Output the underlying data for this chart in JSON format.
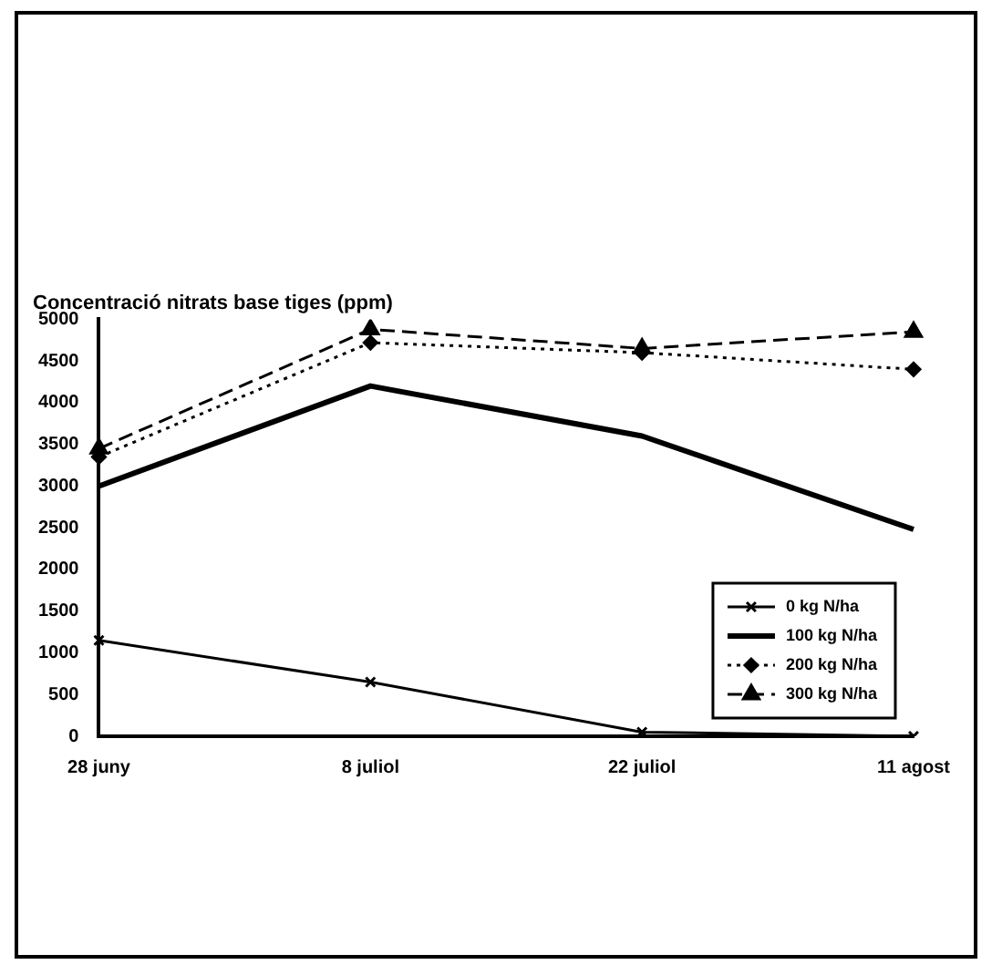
{
  "chart_data": {
    "type": "line",
    "title": "Concentració nitrats base tiges (ppm)",
    "categories": [
      "28 juny",
      "8 juliol",
      "22 juliol",
      "11 agost"
    ],
    "ylim": [
      0,
      5000
    ],
    "yticks": [
      0,
      500,
      1000,
      1500,
      2000,
      2500,
      3000,
      3500,
      4000,
      4500,
      5000
    ],
    "grid": false,
    "legend": "bottom right",
    "series": [
      {
        "name": "0 kg N/ha",
        "color": "#000000",
        "values": [
          1150,
          650,
          50,
          0
        ],
        "line_style": "solid",
        "marker": "cross"
      },
      {
        "name": "100 kg N/ha",
        "color": "#000000",
        "values": [
          3000,
          4200,
          3600,
          2480
        ],
        "line_style": "solid",
        "marker": "none"
      },
      {
        "name": "200 kg N/ha",
        "color": "#000000",
        "values": [
          3350,
          4720,
          4600,
          4400
        ],
        "line_style": "dotted",
        "marker": "diamond"
      },
      {
        "name": "300 kg N/ha",
        "color": "#000000",
        "values": [
          3450,
          4880,
          4650,
          4850
        ],
        "line_style": "dashed",
        "marker": "triangle"
      }
    ]
  }
}
